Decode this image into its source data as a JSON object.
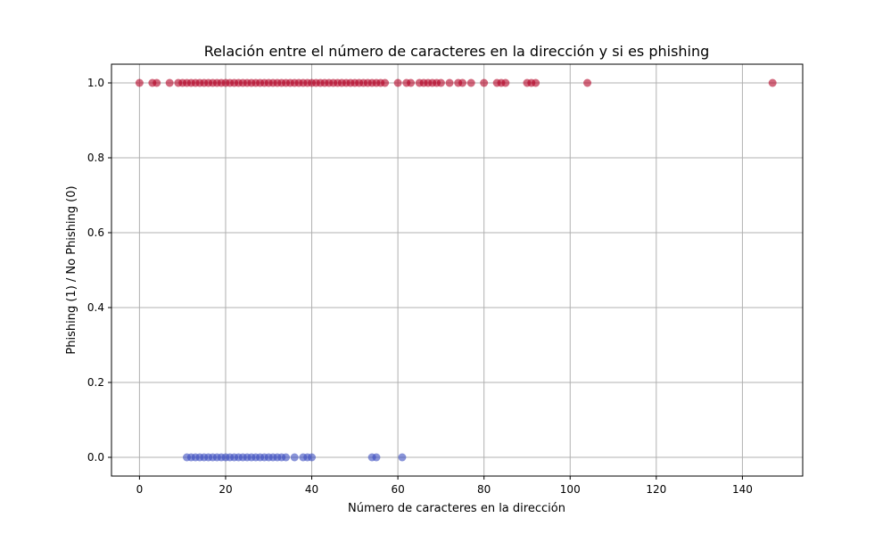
{
  "chart_data": {
    "type": "scatter",
    "title": "Relación entre el número de caracteres en la dirección y si es phishing",
    "xlabel": "Número de caracteres en la dirección",
    "ylabel": "Phishing (1) / No Phishing (0)",
    "xlim": [
      -6.5,
      154
    ],
    "ylim": [
      -0.05,
      1.05
    ],
    "xticks": [
      0,
      20,
      40,
      60,
      80,
      100,
      120,
      140
    ],
    "yticks": [
      0.0,
      0.2,
      0.4,
      0.6,
      0.8,
      1.0
    ],
    "xtick_labels": [
      "0",
      "20",
      "40",
      "60",
      "80",
      "100",
      "120",
      "140"
    ],
    "ytick_labels": [
      "0.0",
      "0.2",
      "0.4",
      "0.6",
      "0.8",
      "1.0"
    ],
    "grid": true,
    "point_alpha": 0.6,
    "colors": {
      "phishing": "#b40426",
      "no_phishing": "#3b4cc0"
    },
    "series": [
      {
        "class": 1,
        "color": "#b40426",
        "x": [
          0,
          3,
          4,
          7,
          9,
          10,
          11,
          12,
          13,
          14,
          15,
          16,
          17,
          18,
          19,
          20,
          21,
          22,
          23,
          24,
          25,
          26,
          27,
          28,
          29,
          30,
          31,
          32,
          33,
          34,
          35,
          36,
          37,
          38,
          39,
          40,
          41,
          42,
          43,
          44,
          45,
          46,
          47,
          48,
          49,
          50,
          51,
          52,
          53,
          54,
          55,
          56,
          57,
          60,
          62,
          63,
          65,
          66,
          67,
          68,
          69,
          70,
          72,
          74,
          75,
          77,
          80,
          83,
          84,
          85,
          90,
          91,
          92,
          104,
          147
        ],
        "y": [
          1,
          1,
          1,
          1,
          1,
          1,
          1,
          1,
          1,
          1,
          1,
          1,
          1,
          1,
          1,
          1,
          1,
          1,
          1,
          1,
          1,
          1,
          1,
          1,
          1,
          1,
          1,
          1,
          1,
          1,
          1,
          1,
          1,
          1,
          1,
          1,
          1,
          1,
          1,
          1,
          1,
          1,
          1,
          1,
          1,
          1,
          1,
          1,
          1,
          1,
          1,
          1,
          1,
          1,
          1,
          1,
          1,
          1,
          1,
          1,
          1,
          1,
          1,
          1,
          1,
          1,
          1,
          1,
          1,
          1,
          1,
          1,
          1,
          1,
          1
        ]
      },
      {
        "class": 0,
        "color": "#3b4cc0",
        "x": [
          11,
          12,
          13,
          14,
          15,
          16,
          17,
          18,
          19,
          20,
          21,
          22,
          23,
          24,
          25,
          26,
          27,
          28,
          29,
          30,
          31,
          32,
          33,
          34,
          36,
          38,
          39,
          40,
          54,
          55,
          61
        ],
        "y": [
          0,
          0,
          0,
          0,
          0,
          0,
          0,
          0,
          0,
          0,
          0,
          0,
          0,
          0,
          0,
          0,
          0,
          0,
          0,
          0,
          0,
          0,
          0,
          0,
          0,
          0,
          0,
          0,
          0,
          0,
          0
        ]
      }
    ]
  }
}
